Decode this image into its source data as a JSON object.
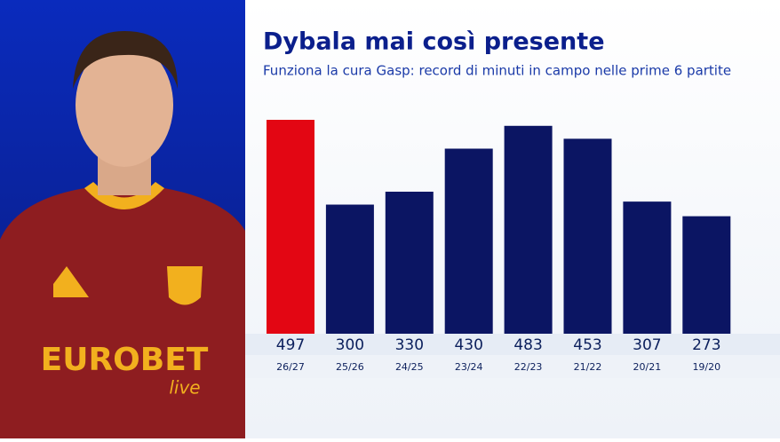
{
  "chart_data": {
    "type": "bar",
    "title": "Dybala mai così presente",
    "subtitle": "Funziona la cura Gasp: record di minuti in campo nelle prime 6 partite",
    "categories": [
      "26/27",
      "25/26",
      "24/25",
      "23/24",
      "22/23",
      "21/22",
      "20/21",
      "19/20"
    ],
    "values": [
      497,
      300,
      330,
      430,
      483,
      453,
      307,
      273
    ],
    "colors": [
      "#e30613",
      "#0b1563",
      "#0b1563",
      "#0b1563",
      "#0b1563",
      "#0b1563",
      "#0b1563",
      "#0b1563"
    ]
  },
  "photo": {
    "sponsor": "EUROBET",
    "sponsor_sub": "live"
  }
}
